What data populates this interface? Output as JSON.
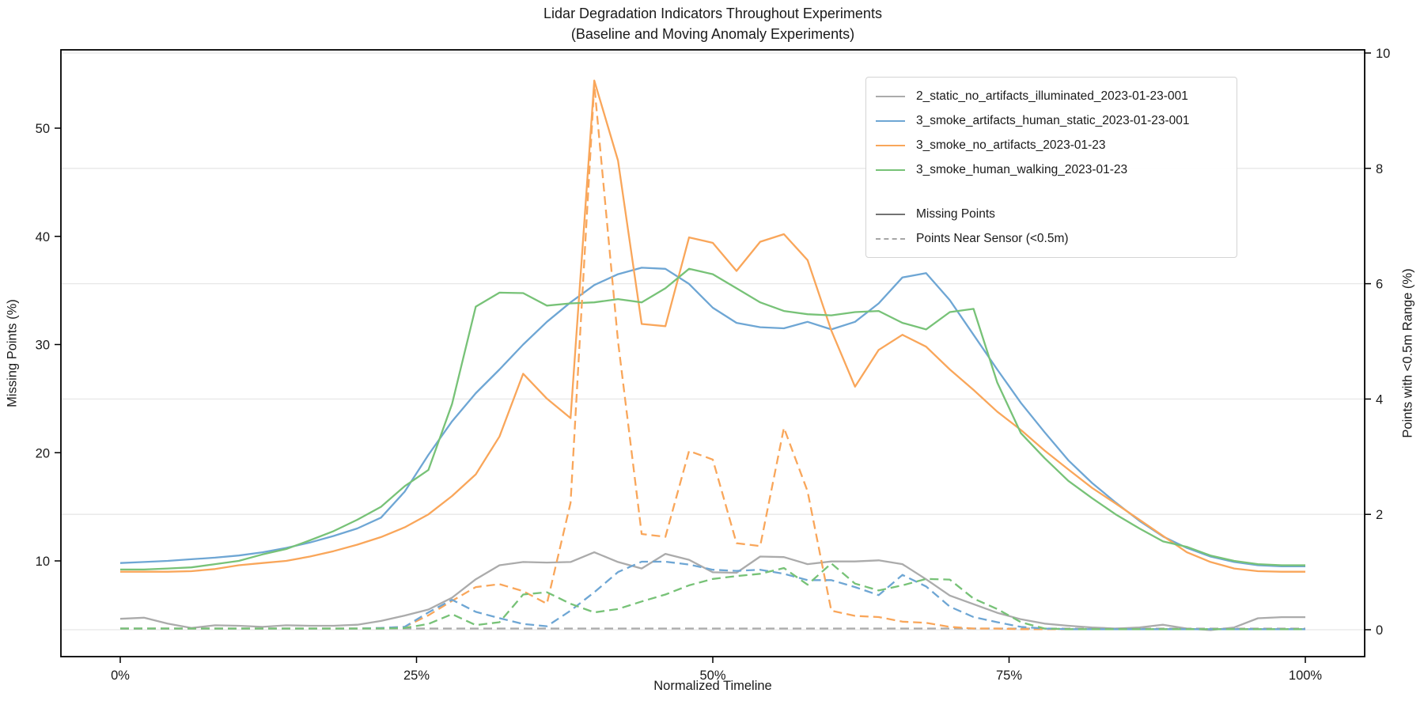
{
  "chart_data": {
    "type": "line",
    "title": "Lidar Degradation Indicators Throughout Experiments",
    "subtitle": "(Baseline and Moving Anomaly Experiments)",
    "xlabel": "Normalized Timeline",
    "ylabel_left": "Missing Points (%)",
    "ylabel_right": "Points with <0.5m Range (%)",
    "x_tick_labels": [
      "0%",
      "25%",
      "50%",
      "75%",
      "100%"
    ],
    "x_tick_percents": [
      0,
      25,
      50,
      75,
      100
    ],
    "y_ticks_left": [
      10,
      20,
      30,
      40,
      50
    ],
    "y_ticks_right": [
      0,
      2,
      4,
      6,
      8,
      10
    ],
    "xlim_percent": [
      -5,
      105
    ],
    "ylim_left": [
      1.1,
      57.2
    ],
    "ylim_right": [
      -0.47,
      10.14
    ],
    "grid": "horizontal gridlines at right-axis ticks",
    "legend_position": "upper right",
    "x_percent": [
      0,
      2,
      4,
      6,
      8,
      10,
      12,
      14,
      16,
      18,
      20,
      22,
      24,
      26,
      28,
      30,
      32,
      34,
      36,
      38,
      40,
      42,
      44,
      46,
      48,
      50,
      52,
      54,
      56,
      58,
      60,
      62,
      64,
      66,
      68,
      70,
      72,
      74,
      76,
      78,
      80,
      82,
      84,
      86,
      88,
      90,
      92,
      94,
      96,
      98,
      100
    ],
    "legend_style_entries": [
      {
        "label": "Missing Points",
        "style": "solid",
        "color": "#737373"
      },
      {
        "label": "Points Near Sensor (<0.5m)",
        "style": "dashed",
        "color": "#a6a6a6"
      }
    ],
    "series": [
      {
        "name": "2_static_no_artifacts_illuminated_2023-01-23-001",
        "metric": "Missing Points",
        "axis": "left",
        "style": "solid",
        "color": "#ababab",
        "in_legend": true,
        "values": [
          4.65,
          4.75,
          4.2,
          3.8,
          4.05,
          4.0,
          3.9,
          4.05,
          4.0,
          4.0,
          4.1,
          4.45,
          4.95,
          5.5,
          6.6,
          8.3,
          9.6,
          9.9,
          9.85,
          9.9,
          10.8,
          9.9,
          9.3,
          10.65,
          10.1,
          8.95,
          8.9,
          10.4,
          10.35,
          9.7,
          9.95,
          9.95,
          10.05,
          9.7,
          8.3,
          6.8,
          6.0,
          5.2,
          4.6,
          4.2,
          4.0,
          3.85,
          3.75,
          3.85,
          4.1,
          3.75,
          3.6,
          3.85,
          4.7,
          4.8,
          4.8
        ]
      },
      {
        "name": "3_smoke_artifacts_human_static_2023-01-23-001",
        "metric": "Missing Points",
        "axis": "left",
        "style": "solid",
        "color": "#6ea6d4",
        "in_legend": true,
        "values": [
          9.8,
          9.9,
          10.0,
          10.15,
          10.3,
          10.5,
          10.8,
          11.2,
          11.7,
          12.3,
          13.0,
          14.0,
          16.4,
          19.8,
          22.9,
          25.5,
          27.7,
          30.0,
          32.1,
          33.9,
          35.5,
          36.5,
          37.1,
          37.0,
          35.6,
          33.4,
          32.0,
          31.6,
          31.5,
          32.1,
          31.4,
          32.1,
          33.8,
          36.2,
          36.6,
          34.1,
          30.9,
          27.7,
          24.6,
          21.9,
          19.3,
          17.2,
          15.4,
          13.7,
          12.25,
          11.2,
          10.4,
          9.9,
          9.6,
          9.5,
          9.5
        ]
      },
      {
        "name": "3_smoke_no_artifacts_2023-01-23",
        "metric": "Missing Points",
        "axis": "left",
        "style": "solid",
        "color": "#f9a65a",
        "in_legend": true,
        "values": [
          9.0,
          9.0,
          9.0,
          9.05,
          9.25,
          9.6,
          9.8,
          10.0,
          10.4,
          10.9,
          11.5,
          12.2,
          13.1,
          14.3,
          16.0,
          18.0,
          21.5,
          27.3,
          25.0,
          23.2,
          54.4,
          47.0,
          31.9,
          31.7,
          39.9,
          39.4,
          36.8,
          39.5,
          40.2,
          37.8,
          31.3,
          26.1,
          29.5,
          30.9,
          29.8,
          27.7,
          25.8,
          23.8,
          22.1,
          20.2,
          18.45,
          16.75,
          15.3,
          13.8,
          12.3,
          10.8,
          9.9,
          9.3,
          9.05,
          9.0,
          9.0
        ]
      },
      {
        "name": "3_smoke_human_walking_2023-01-23",
        "metric": "Missing Points",
        "axis": "left",
        "style": "solid",
        "color": "#77c277",
        "in_legend": true,
        "values": [
          9.2,
          9.2,
          9.3,
          9.4,
          9.7,
          10.0,
          10.6,
          11.1,
          11.9,
          12.75,
          13.8,
          15.0,
          16.9,
          18.4,
          24.5,
          33.5,
          34.8,
          34.75,
          33.6,
          33.8,
          33.9,
          34.2,
          33.9,
          35.2,
          37.0,
          36.5,
          35.2,
          33.9,
          33.1,
          32.8,
          32.7,
          33.0,
          33.1,
          32.0,
          31.4,
          33.0,
          33.3,
          26.5,
          21.8,
          19.5,
          17.4,
          15.8,
          14.3,
          13.0,
          11.8,
          11.3,
          10.5,
          10.0,
          9.7,
          9.6,
          9.6
        ]
      },
      {
        "name": "2_static_no_artifacts_illuminated_2023-01-23-001",
        "metric": "Points Near Sensor (<0.5m)",
        "axis": "right",
        "style": "dashed",
        "color": "#ababab",
        "in_legend": false,
        "values": [
          0.02,
          0.02,
          0.02,
          0.02,
          0.02,
          0.02,
          0.02,
          0.02,
          0.02,
          0.02,
          0.02,
          0.02,
          0.02,
          0.02,
          0.02,
          0.02,
          0.02,
          0.02,
          0.02,
          0.02,
          0.02,
          0.02,
          0.02,
          0.02,
          0.02,
          0.02,
          0.02,
          0.02,
          0.02,
          0.02,
          0.02,
          0.02,
          0.02,
          0.02,
          0.02,
          0.02,
          0.02,
          0.02,
          0.02,
          0.02,
          0.02,
          0.02,
          0.02,
          0.02,
          0.02,
          0.02,
          0.02,
          0.02,
          0.02,
          0.02,
          0.02
        ]
      },
      {
        "name": "3_smoke_artifacts_human_static_2023-01-23-001",
        "metric": "Points Near Sensor (<0.5m)",
        "axis": "right",
        "style": "dashed",
        "color": "#6ea6d4",
        "in_legend": false,
        "values": [
          0.02,
          0.02,
          0.02,
          0.02,
          0.02,
          0.02,
          0.02,
          0.02,
          0.02,
          0.02,
          0.02,
          0.03,
          0.05,
          0.3,
          0.52,
          0.31,
          0.2,
          0.1,
          0.06,
          0.33,
          0.65,
          1.0,
          1.18,
          1.18,
          1.13,
          1.04,
          1.02,
          1.04,
          0.97,
          0.86,
          0.86,
          0.74,
          0.6,
          0.95,
          0.75,
          0.4,
          0.22,
          0.13,
          0.05,
          0.02,
          0.01,
          0.01,
          0.01,
          0.01,
          0.01,
          0.01,
          0.01,
          0.01,
          0.01,
          0.01,
          0.01
        ]
      },
      {
        "name": "3_smoke_no_artifacts_2023-01-23",
        "metric": "Points Near Sensor (<0.5m)",
        "axis": "right",
        "style": "dashed",
        "color": "#f9a65a",
        "in_legend": false,
        "values": [
          0.02,
          0.02,
          0.02,
          0.02,
          0.02,
          0.02,
          0.02,
          0.02,
          0.02,
          0.02,
          0.02,
          0.03,
          0.05,
          0.25,
          0.5,
          0.74,
          0.79,
          0.67,
          0.45,
          2.2,
          9.45,
          5.0,
          1.66,
          1.61,
          3.1,
          2.95,
          1.5,
          1.45,
          3.5,
          2.4,
          0.33,
          0.24,
          0.22,
          0.14,
          0.12,
          0.05,
          0.02,
          0.02,
          0.01,
          0.01,
          0.01,
          0.01,
          0.01,
          0.01,
          0.01,
          0.01,
          0.01,
          0.01,
          0.01,
          0.01,
          0.01
        ]
      },
      {
        "name": "3_smoke_human_walking_2023-01-23",
        "metric": "Points Near Sensor (<0.5m)",
        "axis": "right",
        "style": "dashed",
        "color": "#77c277",
        "in_legend": false,
        "values": [
          0.02,
          0.02,
          0.02,
          0.02,
          0.02,
          0.02,
          0.02,
          0.02,
          0.02,
          0.02,
          0.02,
          0.02,
          0.03,
          0.1,
          0.27,
          0.08,
          0.13,
          0.61,
          0.65,
          0.45,
          0.3,
          0.36,
          0.49,
          0.61,
          0.77,
          0.88,
          0.93,
          0.97,
          1.07,
          0.78,
          1.15,
          0.8,
          0.68,
          0.77,
          0.88,
          0.87,
          0.54,
          0.36,
          0.13,
          0.02,
          0.01,
          0.01,
          0.01,
          0.01,
          0.01,
          0.01,
          0.01,
          0.01,
          0.01,
          0.01,
          0.01
        ]
      }
    ]
  }
}
